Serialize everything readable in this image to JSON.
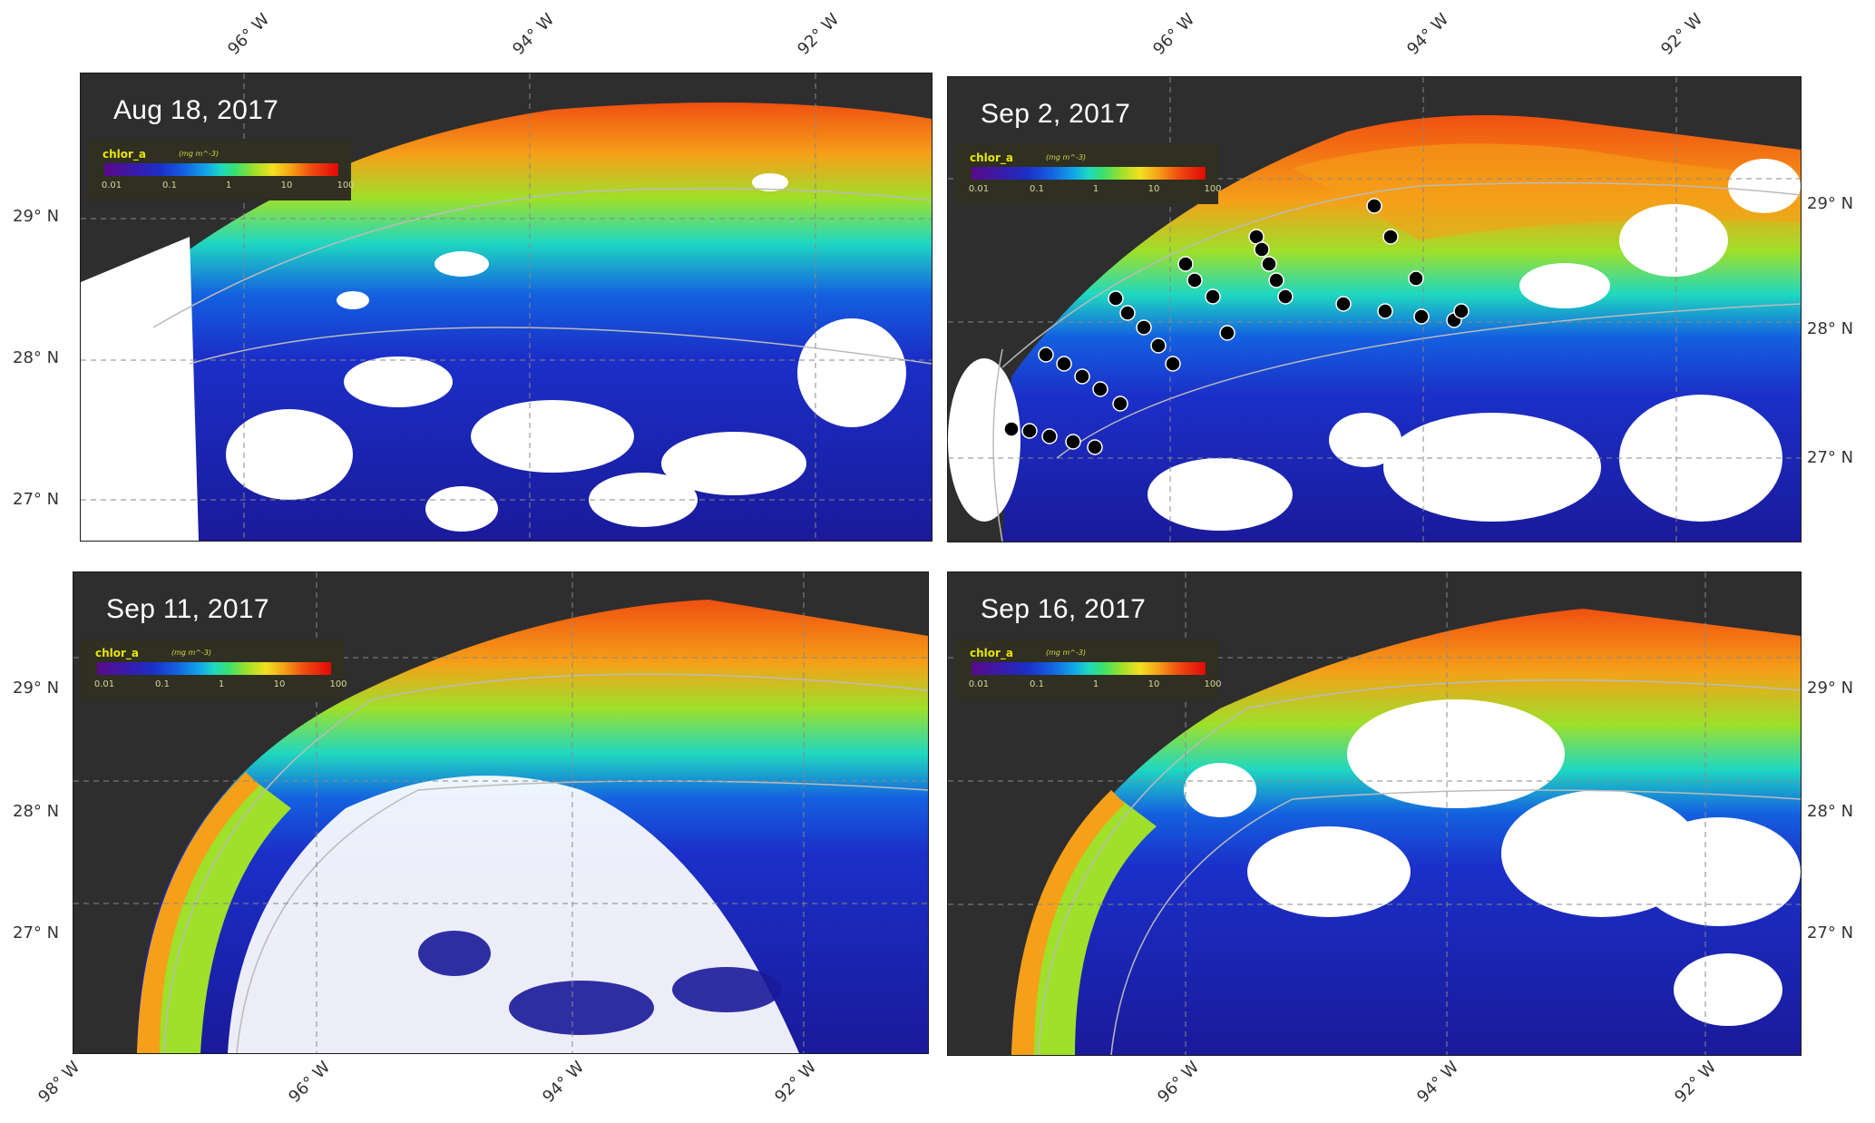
{
  "panels": [
    {
      "id": "aug18",
      "date": "Aug 18, 2017"
    },
    {
      "id": "sep02",
      "date": "Sep 2, 2017"
    },
    {
      "id": "sep11",
      "date": "Sep 11, 2017"
    },
    {
      "id": "sep16",
      "date": "Sep 16, 2017"
    }
  ],
  "colorbar": {
    "variable": "chlor_a",
    "unit": "(mg m^-3)",
    "ticks": [
      "0.01",
      "0.1",
      "1",
      "10",
      "100"
    ],
    "scale": "log"
  },
  "axes": {
    "lat_labels": [
      "29° N",
      "28° N",
      "27° N"
    ],
    "lon_labels_top_left": [
      "96° W",
      "94° W",
      "92° W"
    ],
    "lon_labels_top_right": [
      "96° W",
      "94° W",
      "92° W"
    ],
    "lon_labels_bottom_left": [
      "98° W",
      "96° W",
      "94° W",
      "92° W"
    ],
    "lon_labels_bottom_right": [
      "96° W",
      "94° W",
      "92° W"
    ],
    "lat_labels_right": [
      "29° N",
      "28° N",
      "27° N"
    ]
  },
  "colors": {
    "land": "#2e2e2e",
    "cloud": "#ffffff",
    "offshore": "#1a1a9a",
    "coastal_high": "#f05010",
    "mid": "#38e070",
    "stations": "#000000"
  }
}
